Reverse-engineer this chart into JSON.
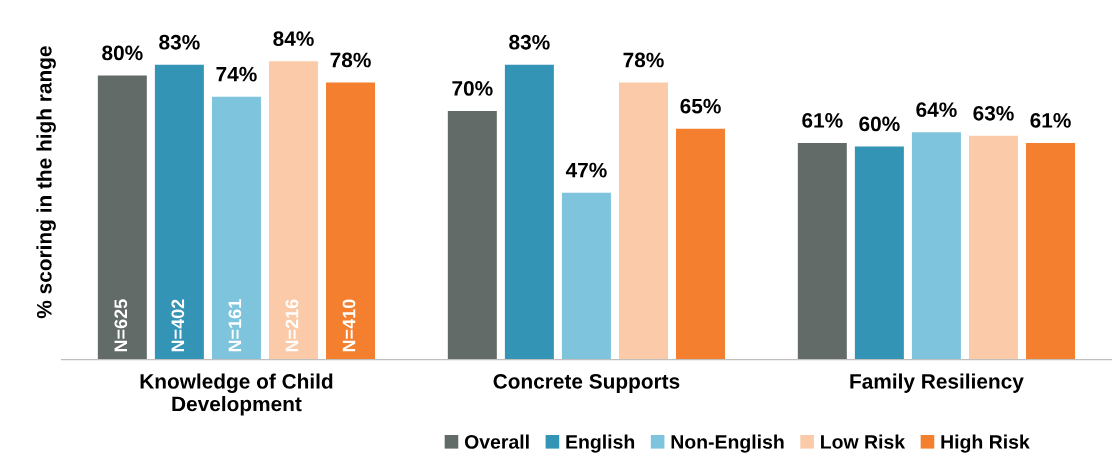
{
  "chart_data": {
    "type": "bar",
    "ylabel": "% scoring in the high range",
    "categories": [
      "Knowledge of Child\nDevelopment",
      "Concrete Supports",
      "Family Resiliency"
    ],
    "series": [
      {
        "name": "Overall",
        "color": "#636b68",
        "values": [
          80,
          70,
          61
        ],
        "value_labels": [
          "80%",
          "70%",
          "61%"
        ]
      },
      {
        "name": "English",
        "color": "#3394b5",
        "values": [
          83,
          83,
          60
        ],
        "value_labels": [
          "83%",
          "83%",
          "60%"
        ]
      },
      {
        "name": "Non-English",
        "color": "#7dc4dc",
        "values": [
          74,
          47,
          64
        ],
        "value_labels": [
          "74%",
          "47%",
          "64%"
        ]
      },
      {
        "name": "Low Risk",
        "color": "#fbcaa8",
        "values": [
          84,
          78,
          63
        ],
        "value_labels": [
          "84%",
          "78%",
          "63%"
        ]
      },
      {
        "name": "High Risk",
        "color": "#f47f2e",
        "values": [
          78,
          65,
          61
        ],
        "value_labels": [
          "78%",
          "65%",
          "61%"
        ]
      }
    ],
    "annotations": [
      "N=625",
      "N=402",
      "N=161",
      "N=216",
      "N=410"
    ],
    "tick_labels": "x",
    "grid": false,
    "legend": "bottom"
  }
}
